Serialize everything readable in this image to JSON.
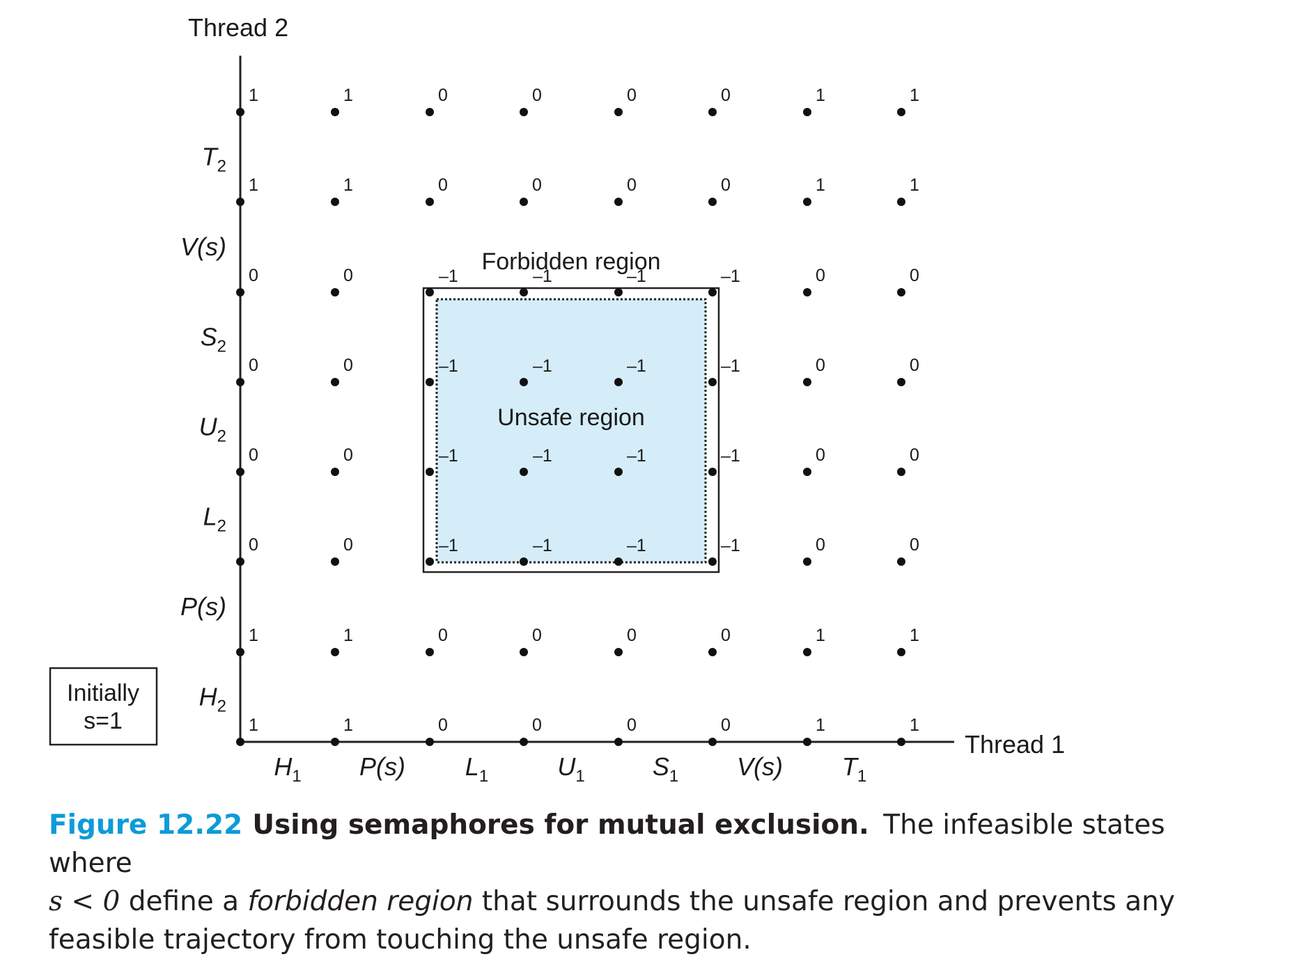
{
  "axes": {
    "y_title": "Thread 2",
    "x_title": "Thread 1",
    "x_ticks": [
      {
        "main": "H",
        "sub": "1"
      },
      {
        "main": "P(s)",
        "sub": ""
      },
      {
        "main": "L",
        "sub": "1"
      },
      {
        "main": "U",
        "sub": "1"
      },
      {
        "main": "S",
        "sub": "1"
      },
      {
        "main": "V(s)",
        "sub": ""
      },
      {
        "main": "T",
        "sub": "1"
      }
    ],
    "y_ticks": [
      {
        "main": "H",
        "sub": "2"
      },
      {
        "main": "P(s)",
        "sub": ""
      },
      {
        "main": "L",
        "sub": "2"
      },
      {
        "main": "U",
        "sub": "2"
      },
      {
        "main": "S",
        "sub": "2"
      },
      {
        "main": "V(s)",
        "sub": ""
      },
      {
        "main": "T",
        "sub": "2"
      }
    ]
  },
  "initial_box": {
    "line1": "Initially",
    "line2": "s=1"
  },
  "regions": {
    "forbidden": "Forbidden region",
    "unsafe": "Unsafe region"
  },
  "grid_values": [
    [
      "1",
      "1",
      "0",
      "0",
      "0",
      "0",
      "1",
      "1"
    ],
    [
      "1",
      "1",
      "0",
      "0",
      "0",
      "0",
      "1",
      "1"
    ],
    [
      "0",
      "0",
      "",
      "",
      "",
      "",
      "0",
      "0"
    ],
    [
      "0",
      "0",
      "",
      "",
      "",
      "",
      "0",
      "0"
    ],
    [
      "0",
      "0",
      "",
      "",
      "",
      "",
      "0",
      "0"
    ],
    [
      "0",
      "0",
      "",
      "",
      "",
      "",
      "0",
      "0"
    ],
    [
      "1",
      "1",
      "0",
      "0",
      "0",
      "0",
      "1",
      "1"
    ],
    [
      "1",
      "1",
      "0",
      "0",
      "0",
      "0",
      "1",
      "1"
    ]
  ],
  "inner_values": [
    [
      "–1",
      "–1",
      "–1",
      "–1"
    ],
    [
      "–1",
      "–1",
      "–1",
      "–1"
    ],
    [
      "–1",
      "–1",
      "–1",
      "–1"
    ],
    [
      "–1",
      "–1",
      "–1",
      "–1"
    ]
  ],
  "colors": {
    "unsafe_fill": "#d5edf9",
    "caption_label": "#0d9bd8"
  },
  "caption": {
    "label": "Figure 12.22",
    "title": "Using semaphores for mutual exclusion.",
    "text_1": "The infeasible states where",
    "math": "s < 0",
    "text_2": " define a ",
    "em": "forbidden region",
    "text_3": " that surrounds the unsafe region and prevents any feasible trajectory from touching the unsafe region."
  }
}
